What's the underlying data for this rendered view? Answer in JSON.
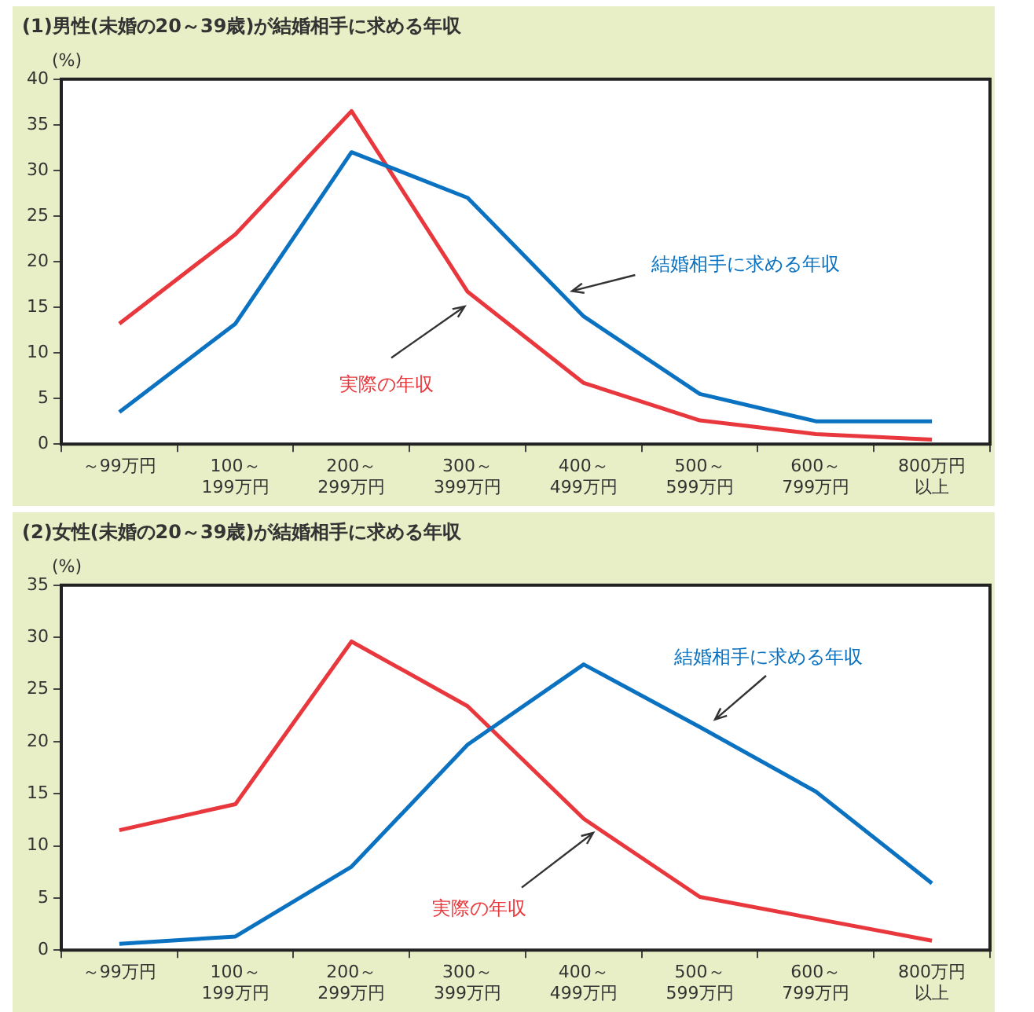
{
  "chart_data": [
    {
      "type": "line",
      "title": "(1)男性(未婚の20～39歳)が結婚相手に求める年収",
      "ylabel": "(%)",
      "categories": [
        "～99万円",
        "100～199万円",
        "200～299万円",
        "300～399万円",
        "400～499万円",
        "500～599万円",
        "600～799万円",
        "800万円以上"
      ],
      "series": [
        {
          "name": "結婚相手に求める年収",
          "color": "#0a72c0",
          "values": [
            3.5,
            13.2,
            32,
            27,
            14,
            5.5,
            2.5,
            2.5
          ]
        },
        {
          "name": "実際の年収",
          "color": "#e8383d",
          "values": [
            13.2,
            23,
            36.5,
            16.7,
            6.7,
            2.6,
            1.1,
            0.5
          ]
        }
      ],
      "ylim": [
        0,
        40
      ],
      "yticks": [
        0,
        5,
        10,
        15,
        20,
        25,
        30,
        35,
        40
      ],
      "grid": false,
      "legend": false,
      "marker": "none",
      "line_style": "solid"
    },
    {
      "type": "line",
      "title": "(2)女性(未婚の20～39歳)が結婚相手に求める年収",
      "ylabel": "(%)",
      "categories": [
        "～99万円",
        "100～199万円",
        "200～299万円",
        "300～399万円",
        "400～499万円",
        "500～599万円",
        "600～799万円",
        "800万円以上"
      ],
      "series": [
        {
          "name": "結婚相手に求める年収",
          "color": "#0a72c0",
          "values": [
            0.6,
            1.3,
            8,
            19.7,
            27.4,
            21.4,
            15.2,
            6.4
          ]
        },
        {
          "name": "実際の年収",
          "color": "#e8383d",
          "values": [
            11.5,
            14,
            29.6,
            23.4,
            12.6,
            5.1,
            3.0,
            0.9
          ]
        }
      ],
      "ylim": [
        0,
        35
      ],
      "yticks": [
        0,
        5,
        10,
        15,
        20,
        25,
        30,
        35
      ],
      "grid": false,
      "legend": false,
      "marker": "none",
      "line_style": "solid"
    }
  ]
}
